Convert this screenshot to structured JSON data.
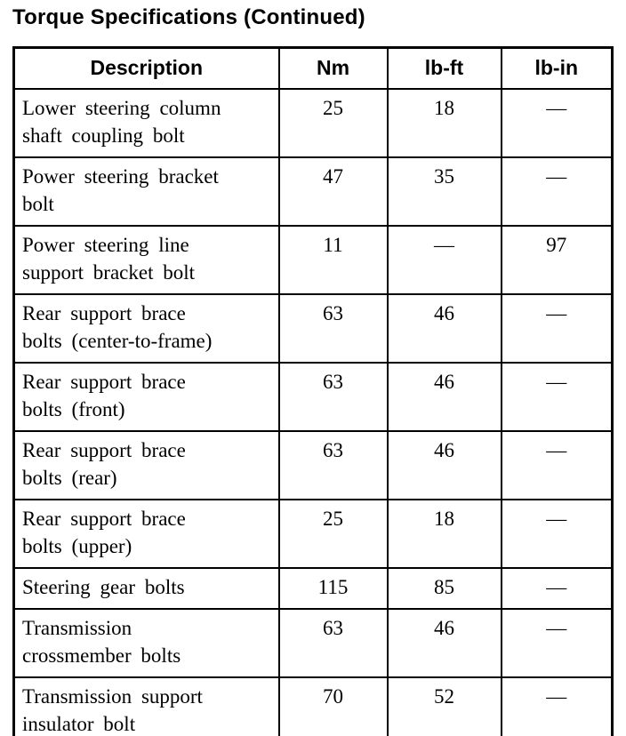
{
  "page_title": "Torque Specifications (Continued)",
  "table": {
    "columns": [
      "Description",
      "Nm",
      "lb-ft",
      "lb-in"
    ],
    "rows": [
      {
        "description": "Lower steering column\nshaft coupling bolt",
        "nm": "25",
        "lb_ft": "18",
        "lb_in": "—"
      },
      {
        "description": "Power steering bracket\nbolt",
        "nm": "47",
        "lb_ft": "35",
        "lb_in": "—"
      },
      {
        "description": "Power steering line\nsupport bracket bolt",
        "nm": "11",
        "lb_ft": "—",
        "lb_in": "97"
      },
      {
        "description": "Rear support brace\nbolts (center-to-frame)",
        "nm": "63",
        "lb_ft": "46",
        "lb_in": "—"
      },
      {
        "description": "Rear support brace\nbolts (front)",
        "nm": "63",
        "lb_ft": "46",
        "lb_in": "—"
      },
      {
        "description": "Rear support brace\nbolts (rear)",
        "nm": "63",
        "lb_ft": "46",
        "lb_in": "—"
      },
      {
        "description": "Rear support brace\nbolts (upper)",
        "nm": "25",
        "lb_ft": "18",
        "lb_in": "—"
      },
      {
        "description": "Steering gear bolts",
        "nm": "115",
        "lb_ft": "85",
        "lb_in": "—"
      },
      {
        "description": "Transmission\ncrossmember bolts",
        "nm": "63",
        "lb_ft": "46",
        "lb_in": "—"
      },
      {
        "description": "Transmission support\ninsulator bolt",
        "nm": "70",
        "lb_ft": "52",
        "lb_in": "—"
      }
    ]
  }
}
